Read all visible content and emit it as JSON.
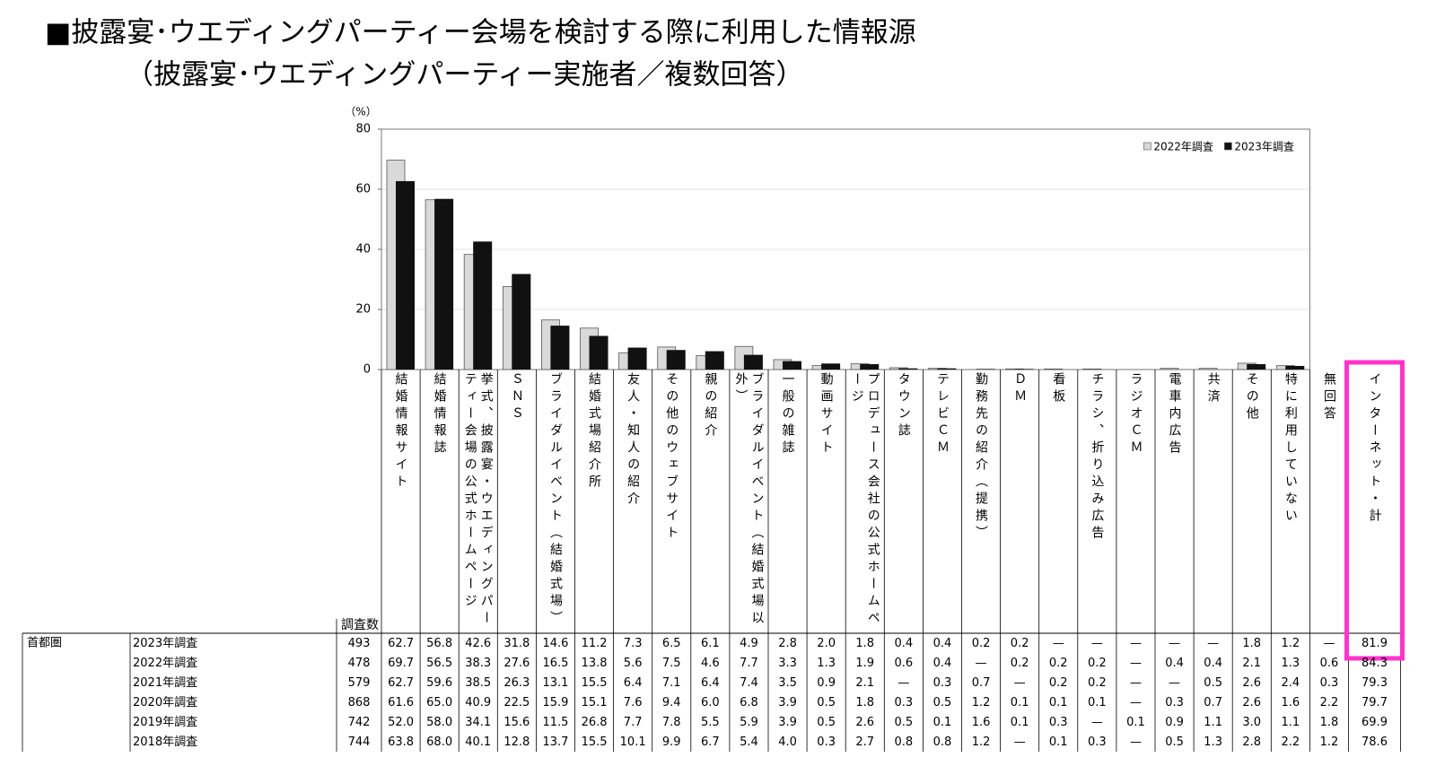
{
  "chart_data": {
    "type": "bar",
    "title": "■披露宴･ウエディングパーティー会場を検討する際に利用した情報源",
    "subtitle": "（披露宴･ウエディングパーティー実施者／複数回答）",
    "y_unit": "（%）",
    "categories": [
      "結婚情報サイト",
      "結婚情報誌",
      "挙式、披露宴・ウエディングパーティー会場の公式ホームページ",
      "ＳＮＳ",
      "ブライダルイベント（結婚式場）",
      "結婚式場紹介所",
      "友人・知人の紹介",
      "その他のウェブサイト",
      "親の紹介",
      "ブライダルイベント（結婚式場以外）",
      "一般の雑誌",
      "動画サイト",
      "プロデュース会社の公式ホームページ",
      "タウン誌",
      "テレビＣＭ",
      "勤務先の紹介（提携）",
      "ＤＭ",
      "看板",
      "チラシ、折り込み広告",
      "ラジオＣＭ",
      "電車内広告",
      "共済",
      "その他",
      "特に利用していない"
    ],
    "series": [
      {
        "name": "2022年調査",
        "color": "#d9d9d9",
        "values": [
          69.7,
          56.5,
          38.3,
          27.6,
          16.5,
          13.8,
          5.6,
          7.5,
          4.6,
          7.7,
          3.3,
          1.3,
          1.9,
          0.6,
          0.4,
          null,
          0.2,
          0.2,
          0.2,
          null,
          0.4,
          0.4,
          2.1,
          1.3
        ]
      },
      {
        "name": "2023年調査",
        "color": "#111111",
        "values": [
          62.7,
          56.8,
          42.6,
          31.8,
          14.6,
          11.2,
          7.3,
          6.5,
          6.1,
          4.9,
          2.8,
          2.0,
          1.8,
          0.4,
          0.4,
          0.2,
          0.2,
          null,
          null,
          null,
          null,
          null,
          1.8,
          1.2
        ]
      }
    ],
    "ylim": [
      0,
      80
    ],
    "yticks": [
      0,
      20,
      40,
      60,
      80
    ],
    "grid": true,
    "legend": "top-right"
  },
  "table": {
    "n_header": "調査数",
    "extra_columns": [
      "無回答",
      "インターネット・計"
    ],
    "region": "首都圏",
    "rows": [
      {
        "label": "2023年調査",
        "n": "493",
        "values": [
          "62.7",
          "56.8",
          "42.6",
          "31.8",
          "14.6",
          "11.2",
          "7.3",
          "6.5",
          "6.1",
          "4.9",
          "2.8",
          "2.0",
          "1.8",
          "0.4",
          "0.4",
          "0.2",
          "0.2",
          "—",
          "—",
          "—",
          "—",
          "—",
          "1.8",
          "1.2",
          "—",
          "81.9"
        ]
      },
      {
        "label": "2022年調査",
        "n": "478",
        "values": [
          "69.7",
          "56.5",
          "38.3",
          "27.6",
          "16.5",
          "13.8",
          "5.6",
          "7.5",
          "4.6",
          "7.7",
          "3.3",
          "1.3",
          "1.9",
          "0.6",
          "0.4",
          "—",
          "0.2",
          "0.2",
          "0.2",
          "—",
          "0.4",
          "0.4",
          "2.1",
          "1.3",
          "0.6",
          "84.3"
        ]
      },
      {
        "label": "2021年調査",
        "n": "579",
        "values": [
          "62.7",
          "59.6",
          "38.5",
          "26.3",
          "13.1",
          "15.5",
          "6.4",
          "7.1",
          "6.4",
          "7.4",
          "3.5",
          "0.9",
          "2.1",
          "—",
          "0.3",
          "0.7",
          "—",
          "0.2",
          "0.2",
          "—",
          "—",
          "0.5",
          "2.6",
          "2.4",
          "0.3",
          "79.3"
        ]
      },
      {
        "label": "2020年調査",
        "n": "868",
        "values": [
          "61.6",
          "65.0",
          "40.9",
          "22.5",
          "15.9",
          "15.1",
          "7.6",
          "9.4",
          "6.0",
          "6.8",
          "3.9",
          "0.5",
          "1.8",
          "0.3",
          "0.5",
          "1.2",
          "0.1",
          "0.1",
          "0.1",
          "—",
          "0.3",
          "0.7",
          "2.6",
          "1.6",
          "2.2",
          "79.7"
        ]
      },
      {
        "label": "2019年調査",
        "n": "742",
        "values": [
          "52.0",
          "58.0",
          "34.1",
          "15.6",
          "11.5",
          "26.8",
          "7.7",
          "7.8",
          "5.5",
          "5.9",
          "3.9",
          "0.5",
          "2.6",
          "0.5",
          "0.1",
          "1.6",
          "0.1",
          "0.3",
          "—",
          "0.1",
          "0.9",
          "1.1",
          "3.0",
          "1.1",
          "1.8",
          "69.9"
        ]
      },
      {
        "label": "2018年調査",
        "n": "744",
        "values": [
          "63.8",
          "68.0",
          "40.1",
          "12.8",
          "13.7",
          "15.5",
          "10.1",
          "9.9",
          "6.7",
          "5.4",
          "4.0",
          "0.3",
          "2.7",
          "0.8",
          "0.8",
          "1.2",
          "—",
          "0.1",
          "0.3",
          "—",
          "0.5",
          "1.3",
          "2.8",
          "2.2",
          "1.2",
          "78.6"
        ]
      }
    ]
  }
}
